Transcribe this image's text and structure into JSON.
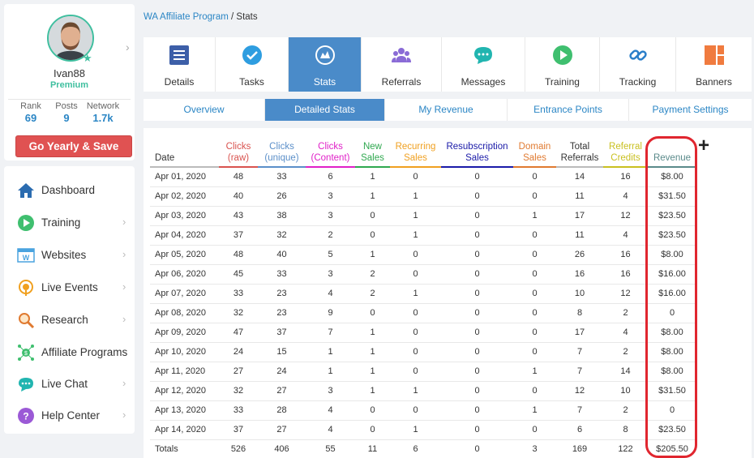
{
  "profile": {
    "username": "Ivan88",
    "membership": "Premium",
    "stats": [
      {
        "label": "Rank",
        "value": "69"
      },
      {
        "label": "Posts",
        "value": "9"
      },
      {
        "label": "Network",
        "value": "1.7k"
      }
    ],
    "cta_label": "Go Yearly & Save"
  },
  "nav": {
    "items": [
      {
        "label": "Dashboard",
        "icon": "home-icon",
        "chevron": false
      },
      {
        "label": "Training",
        "icon": "play-icon",
        "chevron": true
      },
      {
        "label": "Websites",
        "icon": "website-icon",
        "chevron": true
      },
      {
        "label": "Live Events",
        "icon": "live-events-icon",
        "chevron": true
      },
      {
        "label": "Research",
        "icon": "research-icon",
        "chevron": true
      },
      {
        "label": "Affiliate Programs",
        "icon": "affiliate-icon",
        "chevron": true
      },
      {
        "label": "Live Chat",
        "icon": "chat-icon",
        "chevron": true
      },
      {
        "label": "Help Center",
        "icon": "help-icon",
        "chevron": true
      }
    ]
  },
  "breadcrumb": {
    "link": "WA Affiliate Program",
    "separator": " / ",
    "current": "Stats"
  },
  "tabs": [
    {
      "label": "Details",
      "icon": "details-icon",
      "color": "#3d5fa8"
    },
    {
      "label": "Tasks",
      "icon": "check-icon",
      "color": "#2e9de0"
    },
    {
      "label": "Stats",
      "icon": "stats-icon",
      "color": "#ffffff"
    },
    {
      "label": "Referrals",
      "icon": "referrals-icon",
      "color": "#8a6bd6"
    },
    {
      "label": "Messages",
      "icon": "messages-icon",
      "color": "#21b5b0"
    },
    {
      "label": "Training",
      "icon": "training-icon",
      "color": "#3fbf6f"
    },
    {
      "label": "Tracking",
      "icon": "link-icon",
      "color": "#2b7fc9"
    },
    {
      "label": "Banners",
      "icon": "banners-icon",
      "color": "#f07b3f"
    }
  ],
  "subtabs": [
    "Overview",
    "Detailed Stats",
    "My Revenue",
    "Entrance Points",
    "Payment Settings"
  ],
  "table": {
    "headers": [
      {
        "l1": "",
        "l2": "Date",
        "color": "#333333"
      },
      {
        "l1": "Clicks",
        "l2": "(raw)",
        "color": "#d9534f"
      },
      {
        "l1": "Clicks",
        "l2": "(unique)",
        "color": "#5b8fc9"
      },
      {
        "l1": "Clicks",
        "l2": "(Content)",
        "color": "#e020c8"
      },
      {
        "l1": "New",
        "l2": "Sales",
        "color": "#2fa84f"
      },
      {
        "l1": "Recurring",
        "l2": "Sales",
        "color": "#f0a020"
      },
      {
        "l1": "Resubscription",
        "l2": "Sales",
        "color": "#1a1aa8"
      },
      {
        "l1": "Domain",
        "l2": "Sales",
        "color": "#e07a30"
      },
      {
        "l1": "Total",
        "l2": "Referrals",
        "color": "#333333"
      },
      {
        "l1": "Referral",
        "l2": "Credits",
        "color": "#c9c020"
      },
      {
        "l1": "",
        "l2": "Revenue",
        "color": "#5a8a8a"
      }
    ],
    "rows": [
      [
        "Apr 01, 2020",
        "48",
        "33",
        "6",
        "1",
        "0",
        "0",
        "0",
        "14",
        "16",
        "$8.00"
      ],
      [
        "Apr 02, 2020",
        "40",
        "26",
        "3",
        "1",
        "1",
        "0",
        "0",
        "11",
        "4",
        "$31.50"
      ],
      [
        "Apr 03, 2020",
        "43",
        "38",
        "3",
        "0",
        "1",
        "0",
        "1",
        "17",
        "12",
        "$23.50"
      ],
      [
        "Apr 04, 2020",
        "37",
        "32",
        "2",
        "0",
        "1",
        "0",
        "0",
        "11",
        "4",
        "$23.50"
      ],
      [
        "Apr 05, 2020",
        "48",
        "40",
        "5",
        "1",
        "0",
        "0",
        "0",
        "26",
        "16",
        "$8.00"
      ],
      [
        "Apr 06, 2020",
        "45",
        "33",
        "3",
        "2",
        "0",
        "0",
        "0",
        "16",
        "16",
        "$16.00"
      ],
      [
        "Apr 07, 2020",
        "33",
        "23",
        "4",
        "2",
        "1",
        "0",
        "0",
        "10",
        "12",
        "$16.00"
      ],
      [
        "Apr 08, 2020",
        "32",
        "23",
        "9",
        "0",
        "0",
        "0",
        "0",
        "8",
        "2",
        "0"
      ],
      [
        "Apr 09, 2020",
        "47",
        "37",
        "7",
        "1",
        "0",
        "0",
        "0",
        "17",
        "4",
        "$8.00"
      ],
      [
        "Apr 10, 2020",
        "24",
        "15",
        "1",
        "1",
        "0",
        "0",
        "0",
        "7",
        "2",
        "$8.00"
      ],
      [
        "Apr 11, 2020",
        "27",
        "24",
        "1",
        "1",
        "0",
        "0",
        "1",
        "7",
        "14",
        "$8.00"
      ],
      [
        "Apr 12, 2020",
        "32",
        "27",
        "3",
        "1",
        "1",
        "0",
        "0",
        "12",
        "10",
        "$31.50"
      ],
      [
        "Apr 13, 2020",
        "33",
        "28",
        "4",
        "0",
        "0",
        "0",
        "1",
        "7",
        "2",
        "0"
      ],
      [
        "Apr 14, 2020",
        "37",
        "27",
        "4",
        "0",
        "1",
        "0",
        "0",
        "6",
        "8",
        "$23.50"
      ]
    ],
    "totals": [
      "Totals",
      "526",
      "406",
      "55",
      "11",
      "6",
      "0",
      "3",
      "169",
      "122",
      "$205.50"
    ],
    "add_column_symbol": "+"
  },
  "colors": {
    "accent": "#4a8bc9",
    "highlight": "#e0262f",
    "premium": "#3fbf9f",
    "cta": "#e05252"
  }
}
